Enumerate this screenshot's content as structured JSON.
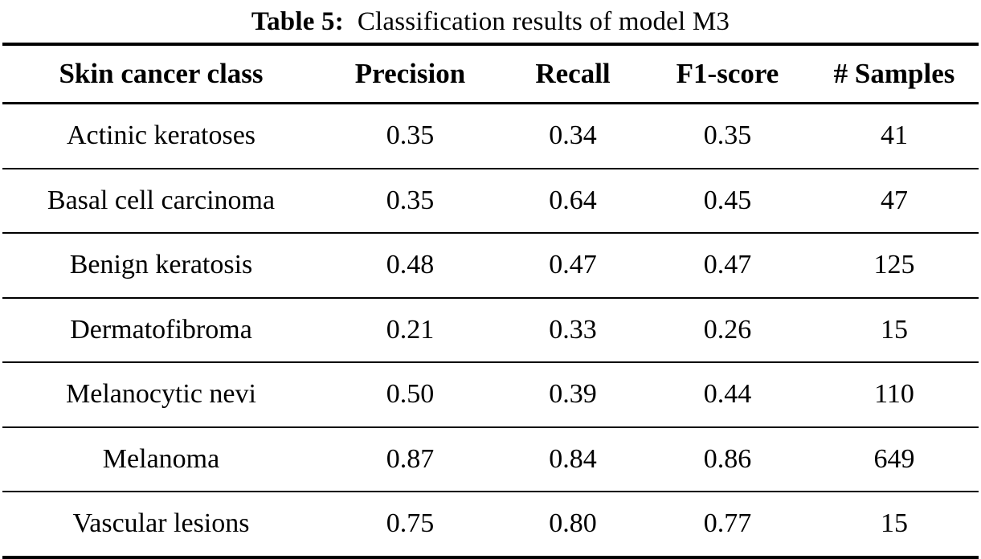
{
  "caption": {
    "label": "Table 5:",
    "text": "Classification results of model M3"
  },
  "table": {
    "headers": [
      "Skin cancer class",
      "Precision",
      "Recall",
      "F1-score",
      "# Samples"
    ],
    "rows": [
      {
        "class": "Actinic keratoses",
        "precision": "0.35",
        "recall": "0.34",
        "f1": "0.35",
        "samples": "41"
      },
      {
        "class": "Basal cell carcinoma",
        "precision": "0.35",
        "recall": "0.64",
        "f1": "0.45",
        "samples": "47"
      },
      {
        "class": "Benign keratosis",
        "precision": "0.48",
        "recall": "0.47",
        "f1": "0.47",
        "samples": "125"
      },
      {
        "class": "Dermatofibroma",
        "precision": "0.21",
        "recall": "0.33",
        "f1": "0.26",
        "samples": "15"
      },
      {
        "class": "Melanocytic nevi",
        "precision": "0.50",
        "recall": "0.39",
        "f1": "0.44",
        "samples": "110"
      },
      {
        "class": "Melanoma",
        "precision": "0.87",
        "recall": "0.84",
        "f1": "0.86",
        "samples": "649"
      },
      {
        "class": "Vascular lesions",
        "precision": "0.75",
        "recall": "0.80",
        "f1": "0.77",
        "samples": "15"
      }
    ]
  },
  "colors": {
    "text": "#000000",
    "background": "#ffffff",
    "rule": "#000000"
  },
  "chart_data": {
    "type": "table",
    "title": "Table 5: Classification results of model M3",
    "categories": [
      "Actinic keratoses",
      "Basal cell carcinoma",
      "Benign keratosis",
      "Dermatofibroma",
      "Melanocytic nevi",
      "Melanoma",
      "Vascular lesions"
    ],
    "series": [
      {
        "name": "Precision",
        "values": [
          0.35,
          0.35,
          0.48,
          0.21,
          0.5,
          0.87,
          0.75
        ]
      },
      {
        "name": "Recall",
        "values": [
          0.34,
          0.64,
          0.47,
          0.33,
          0.39,
          0.84,
          0.8
        ]
      },
      {
        "name": "F1-score",
        "values": [
          0.35,
          0.45,
          0.47,
          0.26,
          0.44,
          0.86,
          0.77
        ]
      },
      {
        "name": "# Samples",
        "values": [
          41,
          47,
          125,
          15,
          110,
          649,
          15
        ]
      }
    ]
  }
}
